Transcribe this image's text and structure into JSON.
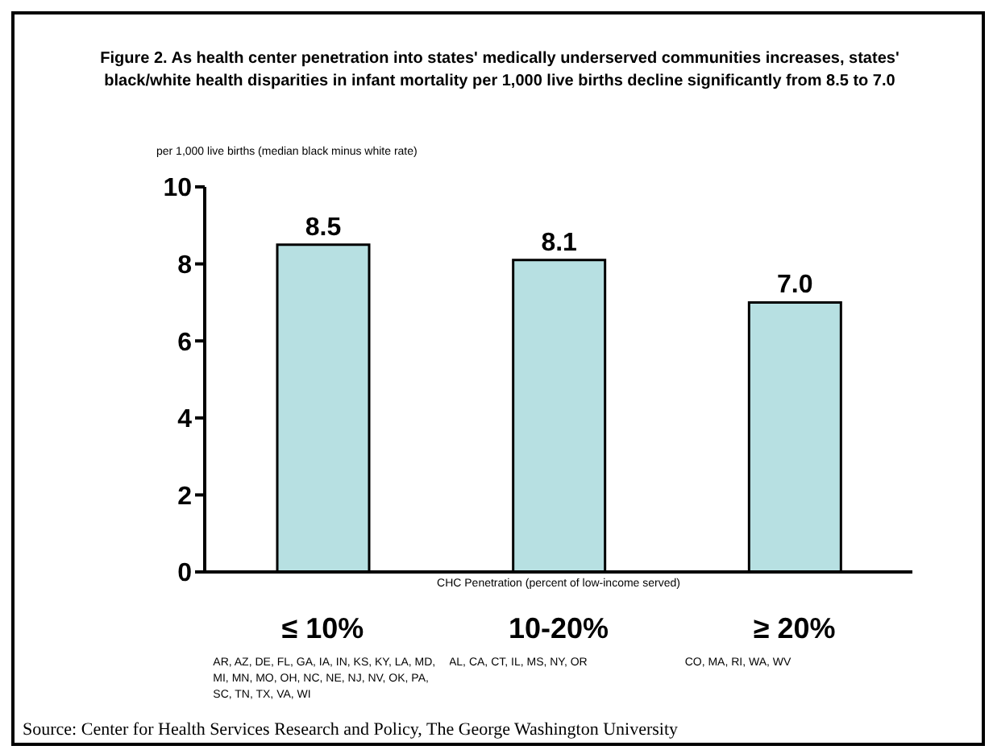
{
  "chart_data": {
    "type": "bar",
    "title": "Figure 2. As health center penetration into states' medically underserved communities increases, states' black/white health disparities in infant mortality per 1,000 live births decline significantly from 8.5 to 7.0",
    "ylabel": "per 1,000 live births (median black minus white rate)",
    "xlabel": "CHC Penetration (percent of low-income served)",
    "categories": [
      "≤ 10%",
      "10-20%",
      "≥ 20%"
    ],
    "values": [
      8.5,
      8.1,
      7.0
    ],
    "color": "#b7e0e2",
    "ylim": [
      0,
      10
    ],
    "yticks": [
      0,
      2,
      4,
      6,
      8,
      10
    ],
    "value_labels": [
      "8.5",
      "8.1",
      "7.0"
    ],
    "grid": false,
    "legend": false,
    "annotations": [
      "AR, AZ, DE, FL, GA, IA, IN, KS, KY, LA, MD, MI, MN, MO, OH, NC, NE, NJ, NV, OK, PA, SC, TN, TX, VA, WI",
      "AL, CA, CT, IL, MS, NY, OR",
      "CO, MA, RI, WA, WV",
      "Source: Center for Health Services Research and Policy, The George Washington University"
    ]
  }
}
